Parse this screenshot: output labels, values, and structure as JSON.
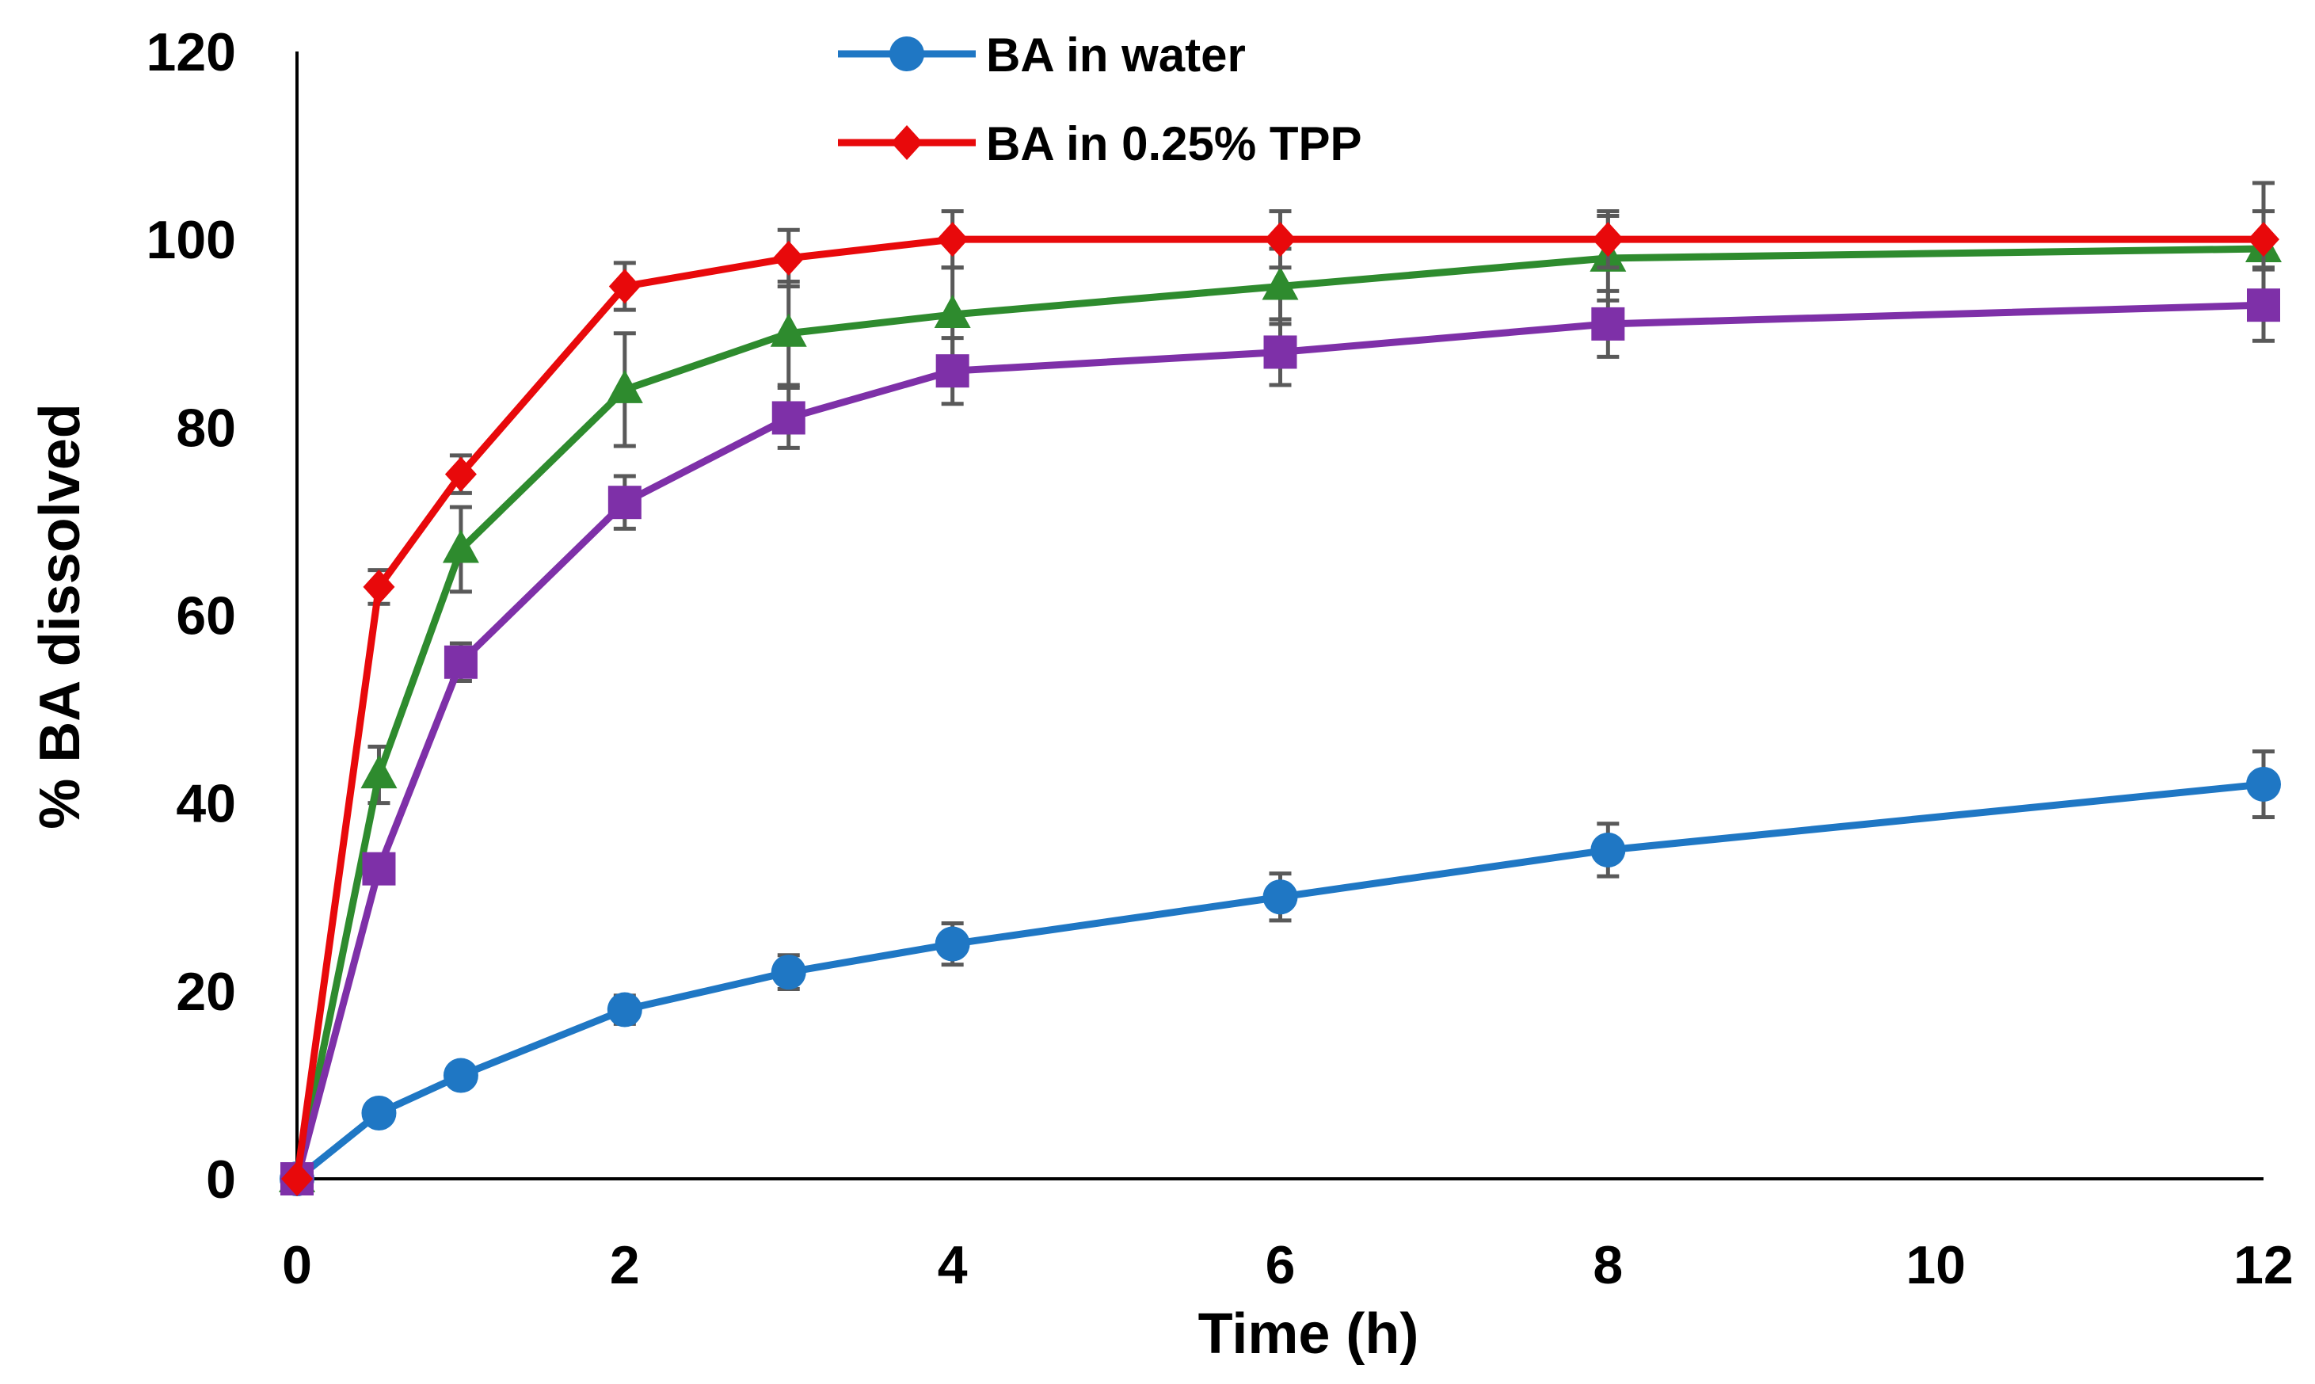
{
  "chart_data": {
    "type": "line",
    "title": "",
    "xlabel": "Time (h)",
    "ylabel": "% BA dissolved",
    "xlim": [
      0,
      12
    ],
    "ylim": [
      0,
      120
    ],
    "xticks": [
      0,
      2,
      4,
      6,
      8,
      10,
      12
    ],
    "yticks": [
      0,
      20,
      40,
      60,
      80,
      100,
      120
    ],
    "x": [
      0,
      0.5,
      1,
      2,
      3,
      4,
      6,
      8,
      12
    ],
    "series": [
      {
        "name": "BA in water",
        "in_legend": true,
        "color": "#1F77C4",
        "marker": "circle",
        "values": [
          0,
          7,
          11,
          18,
          22,
          25,
          30,
          35,
          42
        ],
        "errors": [
          0,
          0.8,
          1.2,
          1.5,
          1.8,
          2.2,
          2.5,
          2.8,
          3.5
        ]
      },
      {
        "name": "BA in 0.25% TPP",
        "in_legend": true,
        "color": "#E8090B",
        "marker": "diamond",
        "values": [
          0,
          63,
          75,
          95,
          98,
          100,
          100,
          100,
          100
        ],
        "errors": [
          0,
          1.8,
          2.0,
          2.5,
          3.0,
          3.0,
          3.0,
          3.0,
          3.0
        ]
      },
      {
        "name": "",
        "in_legend": false,
        "color": "#2E8B2E",
        "marker": "triangle",
        "values": [
          0,
          43,
          67,
          84,
          90,
          92,
          95,
          98,
          99
        ],
        "errors": [
          0,
          3.0,
          4.5,
          6.0,
          5.5,
          5.0,
          4.0,
          4.5,
          7.0
        ]
      },
      {
        "name": "",
        "in_legend": false,
        "color": "#7E30A8",
        "marker": "square",
        "values": [
          0,
          33,
          55,
          72,
          81,
          86,
          88,
          91,
          93
        ],
        "errors": [
          0,
          1.5,
          2.0,
          2.8,
          3.2,
          3.5,
          3.5,
          3.5,
          3.8
        ]
      }
    ]
  }
}
